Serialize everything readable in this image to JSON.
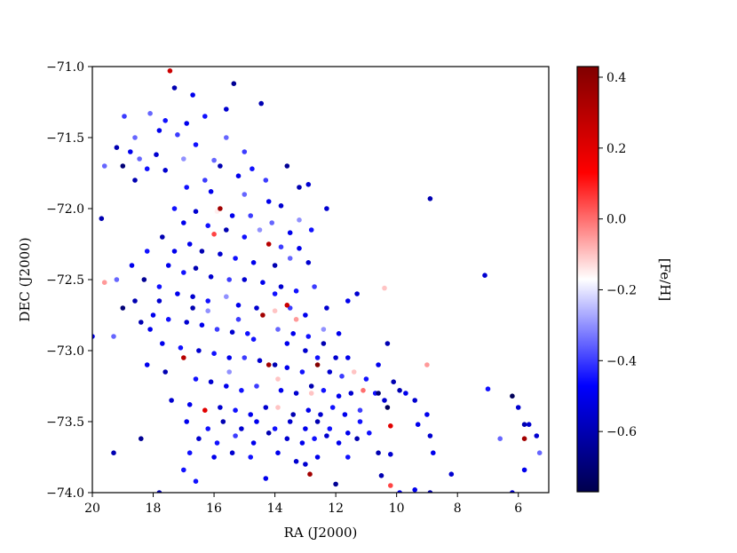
{
  "chart_data": {
    "type": "scatter",
    "title": "",
    "xlabel": "RA (J2000)",
    "ylabel": "DEC (J2000)",
    "xlim": [
      20,
      5
    ],
    "ylim": [
      -74.0,
      -71.0
    ],
    "x_inverted": true,
    "grid": false,
    "xticks": [
      20,
      18,
      16,
      14,
      12,
      10,
      8,
      6
    ],
    "xtick_labels": [
      "20",
      "18",
      "16",
      "14",
      "12",
      "10",
      "8",
      "6"
    ],
    "yticks": [
      -71.0,
      -71.5,
      -72.0,
      -72.5,
      -73.0,
      -73.5,
      -74.0
    ],
    "ytick_labels": [
      "−71.0",
      "−71.5",
      "−72.0",
      "−72.5",
      "−73.0",
      "−73.5",
      "−74.0"
    ],
    "colorbar": {
      "label": "[Fe/H]",
      "min": -0.77,
      "max": 0.43,
      "colormap": "seismic",
      "colors": [
        "#00004d",
        "#0000ff",
        "#ffffff",
        "#ff0000",
        "#800000"
      ],
      "ticks": [
        0.4,
        0.2,
        0.0,
        -0.2,
        -0.4,
        -0.6
      ],
      "tick_labels": [
        "0.4",
        "0.2",
        "0.0",
        "−0.2",
        "−0.4",
        "−0.6"
      ]
    },
    "points": [
      [
        17.45,
        -71.03,
        0.25
      ],
      [
        17.3,
        -71.15,
        -0.6
      ],
      [
        15.35,
        -71.12,
        -0.65
      ],
      [
        14.45,
        -71.26,
        -0.6
      ],
      [
        15.6,
        -71.3,
        -0.55
      ],
      [
        18.95,
        -71.35,
        -0.4
      ],
      [
        18.1,
        -71.33,
        -0.35
      ],
      [
        17.6,
        -71.38,
        -0.45
      ],
      [
        16.9,
        -71.4,
        -0.5
      ],
      [
        16.3,
        -71.35,
        -0.45
      ],
      [
        18.6,
        -71.5,
        -0.35
      ],
      [
        17.8,
        -71.45,
        -0.5
      ],
      [
        17.2,
        -71.48,
        -0.4
      ],
      [
        16.6,
        -71.55,
        -0.45
      ],
      [
        15.6,
        -71.5,
        -0.35
      ],
      [
        19.2,
        -71.57,
        -0.6
      ],
      [
        18.75,
        -71.6,
        -0.5
      ],
      [
        18.45,
        -71.65,
        -0.35
      ],
      [
        17.9,
        -71.62,
        -0.55
      ],
      [
        17.0,
        -71.65,
        -0.3
      ],
      [
        16.0,
        -71.66,
        -0.35
      ],
      [
        15.8,
        -71.7,
        -0.6
      ],
      [
        14.75,
        -71.72,
        -0.45
      ],
      [
        13.6,
        -71.7,
        -0.65
      ],
      [
        19.6,
        -71.7,
        -0.35
      ],
      [
        19.0,
        -71.7,
        -0.7
      ],
      [
        18.2,
        -71.72,
        -0.45
      ],
      [
        17.6,
        -71.73,
        -0.55
      ],
      [
        16.3,
        -71.8,
        -0.4
      ],
      [
        15.2,
        -71.77,
        -0.5
      ],
      [
        14.3,
        -71.8,
        -0.4
      ],
      [
        13.2,
        -71.85,
        -0.6
      ],
      [
        12.9,
        -71.83,
        -0.55
      ],
      [
        18.6,
        -71.8,
        -0.6
      ],
      [
        16.9,
        -71.85,
        -0.45
      ],
      [
        16.1,
        -71.88,
        -0.5
      ],
      [
        15.0,
        -71.9,
        -0.35
      ],
      [
        14.2,
        -71.95,
        -0.5
      ],
      [
        13.8,
        -71.98,
        -0.55
      ],
      [
        8.9,
        -71.93,
        -0.6
      ],
      [
        17.3,
        -72.0,
        -0.45
      ],
      [
        16.6,
        -72.02,
        -0.55
      ],
      [
        15.9,
        -72.02,
        -0.15
      ],
      [
        15.4,
        -72.05,
        -0.5
      ],
      [
        14.8,
        -72.05,
        -0.4
      ],
      [
        14.1,
        -72.1,
        -0.35
      ],
      [
        13.2,
        -72.08,
        -0.3
      ],
      [
        12.3,
        -72.0,
        -0.55
      ],
      [
        17.0,
        -72.1,
        -0.5
      ],
      [
        16.2,
        -72.12,
        -0.45
      ],
      [
        15.6,
        -72.15,
        -0.6
      ],
      [
        14.5,
        -72.15,
        -0.3
      ],
      [
        13.5,
        -72.17,
        -0.5
      ],
      [
        12.8,
        -72.15,
        -0.45
      ],
      [
        19.7,
        -72.07,
        -0.6
      ],
      [
        16.0,
        -72.18,
        0.05
      ],
      [
        15.0,
        -72.2,
        -0.45
      ],
      [
        14.2,
        -72.25,
        0.3
      ],
      [
        13.8,
        -72.27,
        -0.4
      ],
      [
        13.2,
        -72.28,
        -0.5
      ],
      [
        16.8,
        -72.25,
        -0.5
      ],
      [
        16.4,
        -72.3,
        -0.6
      ],
      [
        15.8,
        -72.32,
        -0.55
      ],
      [
        15.3,
        -72.35,
        -0.45
      ],
      [
        14.7,
        -72.38,
        -0.5
      ],
      [
        14.0,
        -72.4,
        -0.6
      ],
      [
        13.5,
        -72.35,
        -0.35
      ],
      [
        12.9,
        -72.38,
        -0.55
      ],
      [
        17.5,
        -72.4,
        -0.5
      ],
      [
        17.0,
        -72.45,
        -0.45
      ],
      [
        16.6,
        -72.42,
        -0.6
      ],
      [
        16.1,
        -72.48,
        -0.55
      ],
      [
        15.5,
        -72.5,
        -0.4
      ],
      [
        15.0,
        -72.5,
        -0.55
      ],
      [
        14.4,
        -72.52,
        -0.5
      ],
      [
        13.8,
        -72.55,
        -0.55
      ],
      [
        13.3,
        -72.58,
        -0.45
      ],
      [
        12.7,
        -72.55,
        -0.4
      ],
      [
        18.3,
        -72.5,
        -0.65
      ],
      [
        17.8,
        -72.55,
        -0.45
      ],
      [
        17.2,
        -72.6,
        -0.5
      ],
      [
        16.7,
        -72.62,
        -0.55
      ],
      [
        16.2,
        -72.65,
        -0.45
      ],
      [
        15.6,
        -72.62,
        -0.3
      ],
      [
        15.2,
        -72.68,
        -0.5
      ],
      [
        14.6,
        -72.7,
        -0.55
      ],
      [
        14.0,
        -72.72,
        -0.1
      ],
      [
        13.5,
        -72.7,
        -0.4
      ],
      [
        13.0,
        -72.75,
        -0.5
      ],
      [
        12.3,
        -72.7,
        -0.55
      ],
      [
        11.6,
        -72.65,
        -0.5
      ],
      [
        11.3,
        -72.6,
        -0.55
      ],
      [
        19.6,
        -72.52,
        -0.05
      ],
      [
        19.2,
        -72.5,
        -0.35
      ],
      [
        18.6,
        -72.65,
        -0.6
      ],
      [
        18.0,
        -72.75,
        -0.5
      ],
      [
        17.5,
        -72.78,
        -0.45
      ],
      [
        16.9,
        -72.8,
        -0.55
      ],
      [
        16.4,
        -72.82,
        -0.5
      ],
      [
        15.9,
        -72.85,
        -0.4
      ],
      [
        15.4,
        -72.87,
        -0.55
      ],
      [
        14.9,
        -72.88,
        -0.45
      ],
      [
        14.4,
        -72.75,
        0.35
      ],
      [
        13.9,
        -72.85,
        -0.35
      ],
      [
        13.4,
        -72.88,
        -0.5
      ],
      [
        12.9,
        -72.9,
        -0.45
      ],
      [
        12.4,
        -72.85,
        -0.3
      ],
      [
        11.9,
        -72.88,
        -0.5
      ],
      [
        10.4,
        -72.56,
        -0.1
      ],
      [
        7.1,
        -72.47,
        -0.55
      ],
      [
        19.3,
        -72.9,
        -0.35
      ],
      [
        18.4,
        -72.8,
        -0.6
      ],
      [
        17.7,
        -72.95,
        -0.5
      ],
      [
        17.1,
        -72.98,
        -0.45
      ],
      [
        16.5,
        -73.0,
        -0.55
      ],
      [
        16.0,
        -73.02,
        -0.45
      ],
      [
        15.5,
        -73.05,
        -0.5
      ],
      [
        15.0,
        -73.05,
        -0.4
      ],
      [
        14.5,
        -73.07,
        -0.55
      ],
      [
        14.0,
        -73.1,
        -0.6
      ],
      [
        13.6,
        -73.12,
        -0.5
      ],
      [
        13.1,
        -73.15,
        -0.45
      ],
      [
        12.6,
        -73.1,
        0.42
      ],
      [
        12.2,
        -73.15,
        -0.55
      ],
      [
        11.8,
        -73.18,
        -0.4
      ],
      [
        11.4,
        -73.15,
        -0.1
      ],
      [
        11.0,
        -73.2,
        -0.45
      ],
      [
        10.6,
        -73.1,
        -0.5
      ],
      [
        10.3,
        -72.95,
        -0.6
      ],
      [
        9.0,
        -73.1,
        -0.05
      ],
      [
        18.2,
        -73.1,
        -0.5
      ],
      [
        17.6,
        -73.15,
        -0.6
      ],
      [
        17.0,
        -73.05,
        0.3
      ],
      [
        16.6,
        -73.2,
        -0.45
      ],
      [
        16.1,
        -73.22,
        -0.55
      ],
      [
        15.6,
        -73.25,
        -0.5
      ],
      [
        15.1,
        -73.28,
        -0.45
      ],
      [
        14.6,
        -73.25,
        -0.4
      ],
      [
        14.2,
        -73.1,
        0.35
      ],
      [
        13.8,
        -73.28,
        -0.5
      ],
      [
        13.3,
        -73.3,
        -0.55
      ],
      [
        12.8,
        -73.25,
        -0.6
      ],
      [
        12.4,
        -73.28,
        -0.45
      ],
      [
        11.9,
        -73.32,
        -0.5
      ],
      [
        11.5,
        -73.3,
        -0.55
      ],
      [
        11.1,
        -73.28,
        0.0
      ],
      [
        10.7,
        -73.3,
        -0.45
      ],
      [
        10.4,
        -73.35,
        -0.55
      ],
      [
        9.9,
        -73.28,
        -0.6
      ],
      [
        7.0,
        -73.27,
        -0.45
      ],
      [
        17.4,
        -73.35,
        -0.55
      ],
      [
        16.8,
        -73.38,
        -0.5
      ],
      [
        16.3,
        -73.42,
        0.2
      ],
      [
        15.8,
        -73.4,
        -0.55
      ],
      [
        15.3,
        -73.42,
        -0.45
      ],
      [
        14.8,
        -73.45,
        -0.5
      ],
      [
        14.3,
        -73.4,
        -0.55
      ],
      [
        13.9,
        -73.4,
        -0.1
      ],
      [
        13.4,
        -73.45,
        -0.6
      ],
      [
        12.9,
        -73.42,
        -0.5
      ],
      [
        12.5,
        -73.45,
        -0.55
      ],
      [
        12.1,
        -73.4,
        -0.45
      ],
      [
        11.7,
        -73.45,
        -0.5
      ],
      [
        11.2,
        -73.42,
        -0.4
      ],
      [
        10.6,
        -73.3,
        -0.7
      ],
      [
        10.3,
        -73.4,
        -0.75
      ],
      [
        9.4,
        -73.35,
        -0.55
      ],
      [
        9.0,
        -73.45,
        -0.5
      ],
      [
        6.2,
        -73.32,
        -0.75
      ],
      [
        6.0,
        -73.4,
        -0.55
      ],
      [
        16.9,
        -73.5,
        -0.5
      ],
      [
        16.2,
        -73.55,
        -0.45
      ],
      [
        15.7,
        -73.5,
        -0.6
      ],
      [
        15.1,
        -73.55,
        -0.55
      ],
      [
        14.6,
        -73.5,
        -0.5
      ],
      [
        14.0,
        -73.55,
        -0.45
      ],
      [
        13.5,
        -73.5,
        -0.55
      ],
      [
        13.0,
        -73.55,
        -0.5
      ],
      [
        12.6,
        -73.5,
        -0.6
      ],
      [
        12.2,
        -73.55,
        -0.45
      ],
      [
        11.6,
        -73.58,
        -0.5
      ],
      [
        10.2,
        -73.53,
        0.2
      ],
      [
        9.3,
        -73.52,
        -0.5
      ],
      [
        5.8,
        -73.52,
        -0.6
      ],
      [
        5.65,
        -73.52,
        -0.55
      ],
      [
        16.5,
        -73.62,
        -0.55
      ],
      [
        15.9,
        -73.65,
        -0.45
      ],
      [
        15.3,
        -73.6,
        -0.4
      ],
      [
        14.7,
        -73.65,
        -0.5
      ],
      [
        14.2,
        -73.58,
        -0.6
      ],
      [
        13.6,
        -73.62,
        -0.55
      ],
      [
        13.1,
        -73.65,
        -0.5
      ],
      [
        12.7,
        -73.62,
        -0.45
      ],
      [
        12.3,
        -73.6,
        -0.55
      ],
      [
        11.9,
        -73.65,
        -0.5
      ],
      [
        11.3,
        -73.62,
        -0.6
      ],
      [
        10.9,
        -73.58,
        -0.45
      ],
      [
        8.9,
        -73.6,
        -0.55
      ],
      [
        6.6,
        -73.62,
        -0.35
      ],
      [
        5.8,
        -73.62,
        0.35
      ],
      [
        5.4,
        -73.6,
        -0.55
      ],
      [
        18.4,
        -73.62,
        -0.65
      ],
      [
        19.3,
        -73.72,
        -0.6
      ],
      [
        16.8,
        -73.72,
        -0.45
      ],
      [
        16.0,
        -73.75,
        -0.5
      ],
      [
        15.4,
        -73.72,
        -0.55
      ],
      [
        14.8,
        -73.75,
        -0.45
      ],
      [
        13.9,
        -73.72,
        -0.5
      ],
      [
        13.3,
        -73.78,
        -0.55
      ],
      [
        12.6,
        -73.75,
        -0.5
      ],
      [
        11.6,
        -73.75,
        -0.45
      ],
      [
        10.6,
        -73.72,
        -0.6
      ],
      [
        10.2,
        -73.73,
        -0.55
      ],
      [
        8.8,
        -73.72,
        -0.5
      ],
      [
        5.3,
        -73.72,
        -0.35
      ],
      [
        17.0,
        -73.84,
        -0.45
      ],
      [
        14.3,
        -73.9,
        -0.5
      ],
      [
        13.0,
        -73.8,
        -0.55
      ],
      [
        12.85,
        -73.87,
        0.35
      ],
      [
        12.0,
        -73.94,
        -0.65
      ],
      [
        10.5,
        -73.88,
        -0.6
      ],
      [
        10.2,
        -73.95,
        0.05
      ],
      [
        9.9,
        -74.0,
        -0.5
      ],
      [
        9.4,
        -73.98,
        -0.5
      ],
      [
        8.9,
        -74.0,
        -0.6
      ],
      [
        8.2,
        -73.87,
        -0.55
      ],
      [
        6.2,
        -74.0,
        -0.55
      ],
      [
        5.8,
        -73.84,
        -0.5
      ],
      [
        17.8,
        -74.0,
        -0.6
      ],
      [
        16.6,
        -73.92,
        -0.45
      ],
      [
        20.0,
        -72.9,
        -0.5
      ],
      [
        12.6,
        -73.05,
        -0.45
      ],
      [
        12.4,
        -72.95,
        -0.6
      ],
      [
        13.0,
        -73.0,
        -0.55
      ],
      [
        13.6,
        -72.95,
        -0.5
      ],
      [
        14.7,
        -72.92,
        -0.45
      ],
      [
        15.2,
        -72.78,
        -0.4
      ],
      [
        16.7,
        -72.7,
        -0.6
      ],
      [
        17.8,
        -72.65,
        -0.55
      ],
      [
        18.1,
        -72.85,
        -0.5
      ],
      [
        19.0,
        -72.7,
        -0.7
      ],
      [
        18.7,
        -72.4,
        -0.5
      ],
      [
        18.2,
        -72.3,
        -0.45
      ],
      [
        17.7,
        -72.2,
        -0.6
      ],
      [
        17.3,
        -72.3,
        -0.5
      ],
      [
        15.0,
        -71.6,
        -0.4
      ],
      [
        16.7,
        -71.2,
        -0.5
      ],
      [
        14.0,
        -72.6,
        -0.45
      ],
      [
        12.0,
        -73.05,
        -0.55
      ],
      [
        11.6,
        -73.05,
        -0.5
      ],
      [
        11.2,
        -73.5,
        -0.45
      ],
      [
        10.1,
        -73.22,
        -0.6
      ],
      [
        9.7,
        -73.3,
        -0.5
      ],
      [
        15.8,
        -72.0,
        0.35
      ],
      [
        13.6,
        -72.68,
        0.25
      ],
      [
        13.3,
        -72.78,
        -0.05
      ],
      [
        12.8,
        -73.3,
        -0.1
      ],
      [
        16.2,
        -72.72,
        -0.3
      ],
      [
        15.5,
        -73.15,
        -0.3
      ],
      [
        13.9,
        -73.2,
        -0.1
      ]
    ]
  }
}
